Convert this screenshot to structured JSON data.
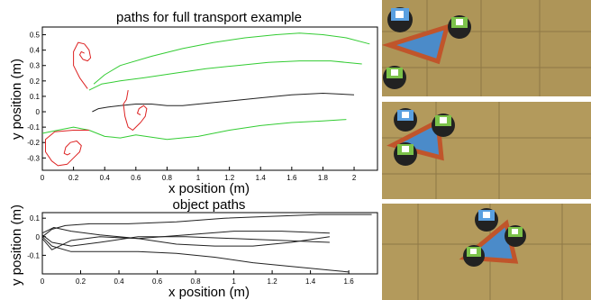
{
  "chart_data": [
    {
      "type": "line",
      "title": "paths for full transport example",
      "xlabel": "x position (m)",
      "ylabel": "y position (m)",
      "xlim": [
        0,
        2.15
      ],
      "ylim": [
        -0.38,
        0.55
      ],
      "xticks": [
        0,
        0.2,
        0.4,
        0.6,
        0.8,
        1,
        1.2,
        1.4,
        1.6,
        1.8,
        2
      ],
      "xtick_labels": [
        "0",
        "0.2",
        "0.4",
        "0.6",
        "0.8",
        "1",
        "1.2",
        "1.4",
        "1.6",
        "1.8",
        "2"
      ],
      "yticks": [
        -0.3,
        -0.2,
        -0.1,
        0,
        0.1,
        0.2,
        0.3,
        0.4,
        0.5
      ],
      "ytick_labels": [
        "-0.3",
        "-0.2",
        "-0.1",
        "0",
        "0.1",
        "0.2",
        "0.3",
        "0.4",
        "0.5"
      ],
      "grid": false,
      "series": [
        {
          "color": "#33cc33",
          "x": [
            0.33,
            0.4,
            0.5,
            0.7,
            0.9,
            1.1,
            1.3,
            1.5,
            1.65,
            1.8,
            1.95,
            2.1
          ],
          "y": [
            0.18,
            0.24,
            0.3,
            0.36,
            0.41,
            0.45,
            0.48,
            0.5,
            0.51,
            0.5,
            0.48,
            0.44
          ]
        },
        {
          "color": "#33cc33",
          "x": [
            0.3,
            0.38,
            0.5,
            0.65,
            0.85,
            1.05,
            1.25,
            1.45,
            1.65,
            1.85,
            2.05
          ],
          "y": [
            0.14,
            0.18,
            0.2,
            0.22,
            0.25,
            0.28,
            0.3,
            0.32,
            0.33,
            0.33,
            0.31
          ]
        },
        {
          "color": "#222222",
          "x": [
            0.32,
            0.36,
            0.42,
            0.5,
            0.6,
            0.7,
            0.8,
            0.9,
            1.0,
            1.2,
            1.4,
            1.6,
            1.8,
            2.0
          ],
          "y": [
            0.0,
            0.02,
            0.03,
            0.04,
            0.05,
            0.05,
            0.04,
            0.04,
            0.05,
            0.07,
            0.09,
            0.11,
            0.12,
            0.11
          ]
        },
        {
          "color": "#33cc33",
          "x": [
            0.0,
            0.1,
            0.2,
            0.3,
            0.4,
            0.5,
            0.6,
            0.8,
            1.0,
            1.2,
            1.4,
            1.6,
            1.8,
            1.95
          ],
          "y": [
            -0.14,
            -0.12,
            -0.1,
            -0.12,
            -0.16,
            -0.17,
            -0.15,
            -0.18,
            -0.16,
            -0.12,
            -0.09,
            -0.07,
            -0.06,
            -0.05
          ]
        },
        {
          "color": "#dd2222",
          "x": [
            0.29,
            0.24,
            0.2,
            0.2,
            0.23,
            0.27,
            0.3,
            0.31,
            0.29,
            0.26,
            0.24,
            0.25,
            0.27
          ],
          "y": [
            0.15,
            0.22,
            0.3,
            0.39,
            0.45,
            0.44,
            0.4,
            0.35,
            0.33,
            0.34,
            0.37,
            0.39,
            0.38
          ]
        },
        {
          "color": "#dd2222",
          "x": [
            0.55,
            0.54,
            0.52,
            0.53,
            0.55,
            0.58,
            0.6,
            0.63,
            0.66,
            0.67,
            0.65,
            0.62,
            0.61,
            0.63
          ],
          "y": [
            0.14,
            0.08,
            0.05,
            -0.03,
            -0.1,
            -0.12,
            -0.1,
            -0.07,
            -0.03,
            0.02,
            0.04,
            0.02,
            -0.01,
            -0.02
          ]
        },
        {
          "color": "#dd2222",
          "x": [
            0.3,
            0.2,
            0.08,
            0.02,
            0.02,
            0.06,
            0.1,
            0.16,
            0.2,
            0.24,
            0.25,
            0.22,
            0.18,
            0.15,
            0.14,
            0.16,
            0.18
          ],
          "y": [
            -0.12,
            -0.12,
            -0.13,
            -0.18,
            -0.26,
            -0.32,
            -0.35,
            -0.34,
            -0.3,
            -0.26,
            -0.22,
            -0.19,
            -0.2,
            -0.23,
            -0.27,
            -0.28,
            -0.27
          ]
        }
      ]
    },
    {
      "type": "line",
      "title": "object paths",
      "xlabel": "x position (m)",
      "ylabel": "y position (m)",
      "xlim": [
        0,
        1.75
      ],
      "ylim": [
        -0.2,
        0.13
      ],
      "xticks": [
        0,
        0.2,
        0.4,
        0.6,
        0.8,
        1,
        1.2,
        1.4,
        1.6
      ],
      "xtick_labels": [
        "0",
        "0.2",
        "0.4",
        "0.6",
        "0.8",
        "1",
        "1.2",
        "1.4",
        "1.6"
      ],
      "yticks": [
        -0.1,
        0,
        0.1
      ],
      "ytick_labels": [
        "-0.1",
        "0",
        "0.1"
      ],
      "grid": false,
      "series": [
        {
          "color": "#222222",
          "x": [
            0.0,
            0.05,
            0.12,
            0.25,
            0.45,
            0.7,
            0.95,
            1.2,
            1.45,
            1.72
          ],
          "y": [
            0.0,
            0.04,
            0.06,
            0.07,
            0.07,
            0.08,
            0.1,
            0.11,
            0.12,
            0.12
          ]
        },
        {
          "color": "#222222",
          "x": [
            0.0,
            0.06,
            0.15,
            0.3,
            0.5,
            0.75,
            1.0,
            1.25,
            1.5
          ],
          "y": [
            0.02,
            0.05,
            0.03,
            0.01,
            -0.01,
            0.01,
            0.03,
            0.03,
            0.02
          ]
        },
        {
          "color": "#222222",
          "x": [
            0.0,
            0.05,
            0.15,
            0.3,
            0.5,
            0.75,
            1.0,
            1.25,
            1.5
          ],
          "y": [
            0.01,
            -0.03,
            -0.05,
            -0.03,
            0.0,
            0.0,
            -0.01,
            -0.02,
            -0.03
          ]
        },
        {
          "color": "#222222",
          "x": [
            0.0,
            0.05,
            0.15,
            0.3,
            0.5,
            0.7,
            0.9,
            1.1,
            1.3,
            1.5
          ],
          "y": [
            -0.01,
            -0.07,
            -0.02,
            0.0,
            -0.01,
            -0.04,
            -0.05,
            -0.05,
            -0.03,
            0.0
          ]
        },
        {
          "color": "#222222",
          "x": [
            0.0,
            0.05,
            0.15,
            0.3,
            0.5,
            0.7,
            0.9,
            1.1,
            1.3,
            1.5,
            1.6
          ],
          "y": [
            0.0,
            -0.05,
            -0.08,
            -0.08,
            -0.08,
            -0.09,
            -0.11,
            -0.14,
            -0.16,
            -0.18,
            -0.19
          ]
        }
      ]
    }
  ],
  "photos": [
    "photo-transport-start",
    "photo-transport-middle",
    "photo-transport-end"
  ]
}
